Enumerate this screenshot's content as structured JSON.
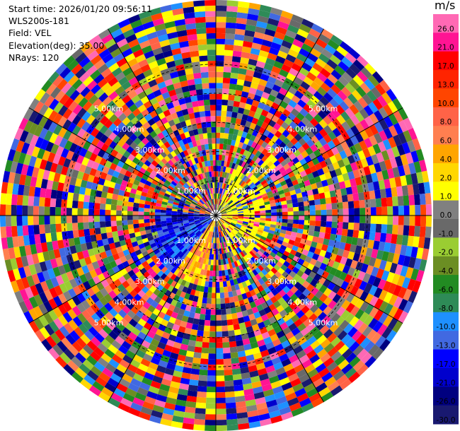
{
  "info": {
    "start_time": "Start time: 2026/01/20 09:56:11",
    "instrument": "WLS200s-181",
    "field": "Field: VEL",
    "elevation": "Elevation(deg): 35.00",
    "nrays": "NRays: 120"
  },
  "colorbar": {
    "unit": "m/s",
    "ticks": [
      "26.0",
      "21.0",
      "17.0",
      "13.0",
      "10.0",
      "8.0",
      "6.0",
      "4.0",
      "2.0",
      "1.0",
      "0.0",
      "-1.0",
      "-2.0",
      "-4.0",
      "-6.0",
      "-8.0",
      "-10.0",
      "-13.0",
      "-17.0",
      "-21.0",
      "-26.0",
      "-30.0"
    ],
    "colors": [
      "#ff69b4",
      "#ff1493",
      "#ff0000",
      "#ff2400",
      "#ff4500",
      "#ff6347",
      "#ff7f50",
      "#ffa500",
      "#ffd700",
      "#ffff00",
      "#808080",
      "#696969",
      "#9acd32",
      "#6b8e23",
      "#228b22",
      "#2e8b57",
      "#1e90ff",
      "#4169e1",
      "#0000ff",
      "#0000cd",
      "#000080",
      "#191970"
    ]
  },
  "chart_data": {
    "type": "ppi",
    "field": "VEL",
    "units": "m/s",
    "nrays": 120,
    "elevation_deg": 35.0,
    "range_ring_labels_km": [
      "1.00km",
      "2.00km",
      "3.00km",
      "4.00km",
      "5.00km"
    ],
    "ring_label_texts": [
      "5.00km",
      "4.00km",
      "3.00km",
      "2.00km",
      "1.00km"
    ],
    "max_range_km": 7.2
  }
}
